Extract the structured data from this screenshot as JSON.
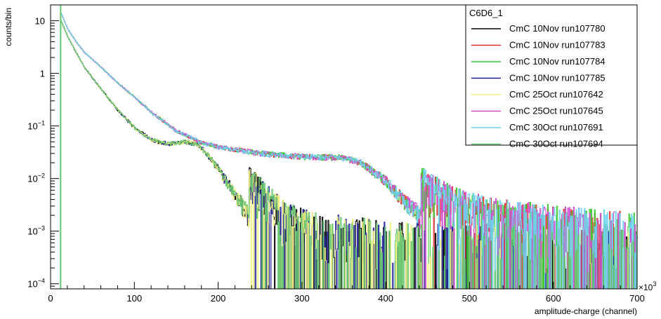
{
  "chart_data": {
    "type": "line",
    "title": "",
    "xlabel": "amplitude-charge (channel)",
    "ylabel": "counts/bin",
    "x_multiplier": "×10",
    "x_multiplier_exp": "3",
    "xlim": [
      0,
      700
    ],
    "ylim": [
      8e-05,
      20
    ],
    "yscale": "log",
    "grid": false,
    "x_ticks": [
      {
        "value": 0,
        "label": "0"
      },
      {
        "value": 100,
        "label": "100"
      },
      {
        "value": 200,
        "label": "200"
      },
      {
        "value": 300,
        "label": "300"
      },
      {
        "value": 400,
        "label": "400"
      },
      {
        "value": 500,
        "label": "500"
      },
      {
        "value": 600,
        "label": "600"
      },
      {
        "value": 700,
        "label": "700"
      }
    ],
    "y_ticks": [
      {
        "value": 10,
        "base": "10",
        "exp": ""
      },
      {
        "value": 1,
        "base": "1",
        "exp": ""
      },
      {
        "value": 0.1,
        "base": "10",
        "exp": "−1"
      },
      {
        "value": 0.01,
        "base": "10",
        "exp": "−2"
      },
      {
        "value": 0.001,
        "base": "10",
        "exp": "−3"
      },
      {
        "value": 0.0001,
        "base": "10",
        "exp": "−4"
      }
    ],
    "legend": {
      "title": "C6D6_1",
      "placement": "top-right"
    },
    "series": [
      {
        "name": "CmC 10Nov run107780",
        "color": "#000000",
        "group": "low",
        "seed": 11
      },
      {
        "name": "CmC 10Nov run107783",
        "color": "#e02a2a",
        "group": "high",
        "seed": 23
      },
      {
        "name": "CmC 10Nov run107784",
        "color": "#35c828",
        "group": "high",
        "seed": 37
      },
      {
        "name": "CmC 10Nov run107785",
        "color": "#1f1f9e",
        "group": "low",
        "seed": 41
      },
      {
        "name": "CmC 25Oct run107642",
        "color": "#f2f27a",
        "group": "low",
        "seed": 53
      },
      {
        "name": "CmC 25Oct run107645",
        "color": "#d04ad0",
        "group": "high",
        "seed": 67
      },
      {
        "name": "CmC 30Oct run107691",
        "color": "#6ad4f0",
        "group": "high",
        "seed": 79
      },
      {
        "name": "CmC 30Oct run107694",
        "color": "#62c86e",
        "group": "low",
        "seed": 97
      }
    ],
    "shapes": {
      "low": [
        [
          12,
          10
        ],
        [
          20,
          5
        ],
        [
          30,
          2.5
        ],
        [
          40,
          1.3
        ],
        [
          60,
          0.5
        ],
        [
          80,
          0.2
        ],
        [
          100,
          0.09
        ],
        [
          120,
          0.055
        ],
        [
          140,
          0.045
        ],
        [
          160,
          0.05
        ],
        [
          175,
          0.045
        ],
        [
          190,
          0.025
        ],
        [
          200,
          0.015
        ],
        [
          220,
          0.005
        ],
        [
          240,
          0.0017
        ],
        [
          260,
          0.0008
        ],
        [
          280,
          0.0004
        ],
        [
          320,
          0.00025
        ],
        [
          400,
          0.00018
        ],
        [
          500,
          0.00015
        ],
        [
          700,
          0.00012
        ]
      ],
      "high": [
        [
          12,
          14
        ],
        [
          20,
          7
        ],
        [
          30,
          4
        ],
        [
          40,
          2.5
        ],
        [
          60,
          1.3
        ],
        [
          80,
          0.65
        ],
        [
          100,
          0.35
        ],
        [
          120,
          0.18
        ],
        [
          150,
          0.08
        ],
        [
          180,
          0.048
        ],
        [
          200,
          0.04
        ],
        [
          250,
          0.03
        ],
        [
          300,
          0.026
        ],
        [
          350,
          0.025
        ],
        [
          370,
          0.02
        ],
        [
          400,
          0.009
        ],
        [
          420,
          0.004
        ],
        [
          450,
          0.0015
        ],
        [
          480,
          0.0008
        ],
        [
          520,
          0.0005
        ],
        [
          600,
          0.00035
        ],
        [
          700,
          0.00025
        ]
      ]
    }
  }
}
